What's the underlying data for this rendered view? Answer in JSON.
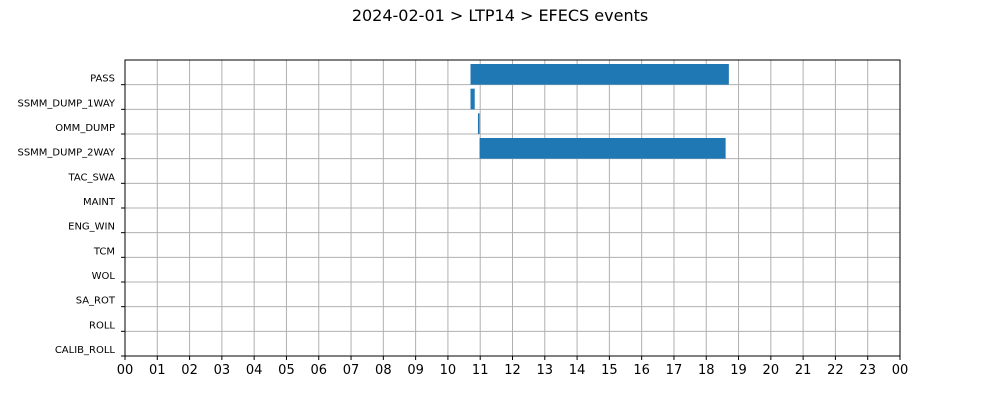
{
  "chart_data": {
    "type": "bar",
    "orientation": "horizontal",
    "title": "2024-02-01 > LTP14 > EFECS events",
    "xlabel": "",
    "ylabel": "",
    "categories": [
      "PASS",
      "SSMM_DUMP_1WAY",
      "OMM_DUMP",
      "SSMM_DUMP_2WAY",
      "TAC_SWA",
      "MAINT",
      "ENG_WIN",
      "TCM",
      "WOL",
      "SA_ROT",
      "ROLL",
      "CALIB_ROLL"
    ],
    "x_ticks": [
      "00",
      "01",
      "02",
      "03",
      "04",
      "05",
      "06",
      "07",
      "08",
      "09",
      "10",
      "11",
      "12",
      "13",
      "14",
      "15",
      "16",
      "17",
      "18",
      "19",
      "20",
      "21",
      "22",
      "23",
      "00"
    ],
    "xlim": [
      0,
      24
    ],
    "x_unit": "hours of day",
    "grid": true,
    "bar_color": "#1f77b4",
    "events": [
      {
        "category": "PASS",
        "start": 10.7,
        "end": 18.7
      },
      {
        "category": "SSMM_DUMP_1WAY",
        "start": 10.7,
        "end": 10.83
      },
      {
        "category": "OMM_DUMP",
        "start": 10.93,
        "end": 10.98
      },
      {
        "category": "SSMM_DUMP_2WAY",
        "start": 10.98,
        "end": 18.6
      }
    ]
  }
}
